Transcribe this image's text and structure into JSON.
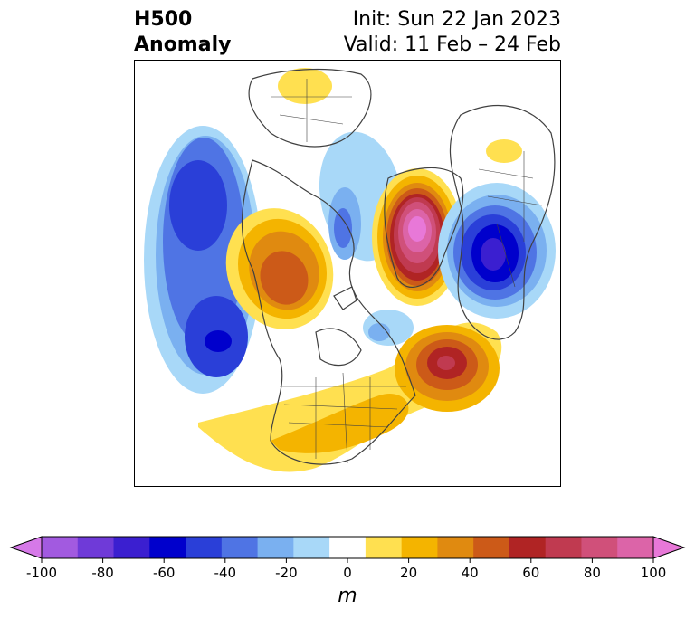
{
  "title": {
    "left_line1": "H500",
    "left_line2": "Anomaly",
    "right_line1": "Init: Sun 22 Jan 2023",
    "right_line2": "Valid: 11 Feb – 24 Feb"
  },
  "colorbar": {
    "unit": "m",
    "ticks": [
      "-100",
      "-80",
      "-60",
      "-40",
      "-20",
      "0",
      "20",
      "40",
      "60",
      "80",
      "100"
    ],
    "colors": [
      "#d679e8",
      "#a25ae0",
      "#6f3ad8",
      "#3b1fd0",
      "#0000cc",
      "#2a3fd8",
      "#4f74e4",
      "#7ab0f0",
      "#a8d8f8",
      "#ffffff",
      "#ffe050",
      "#f4b400",
      "#e08a10",
      "#cc5a18",
      "#b02424",
      "#c03a50",
      "#d0507a",
      "#dc64a8",
      "#e878d8"
    ]
  },
  "colors": {
    "coast": "#404040",
    "frame": "#000000"
  }
}
